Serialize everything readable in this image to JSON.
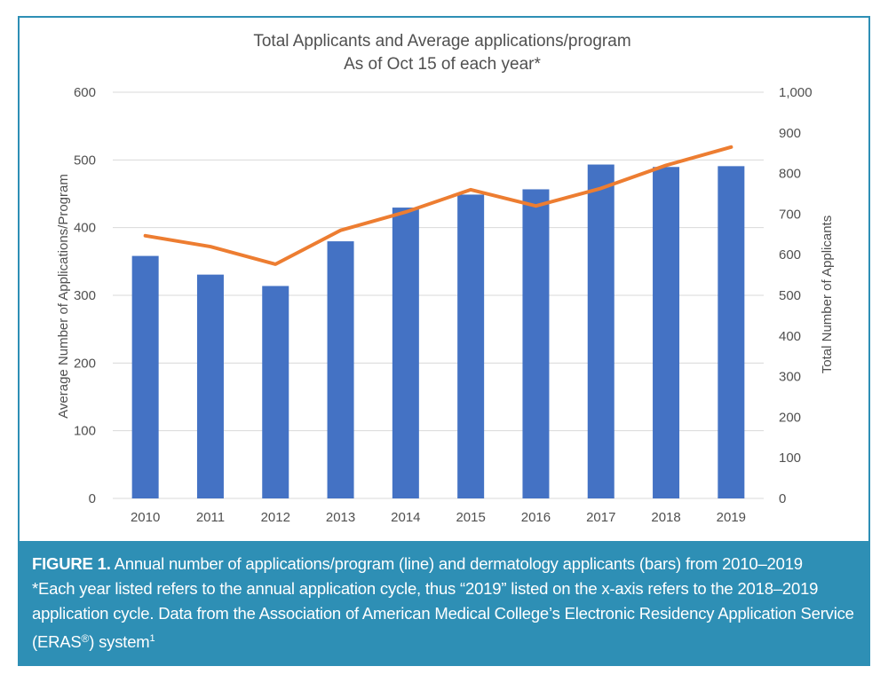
{
  "chart_data": {
    "type": "bar",
    "title": "Total Applicants and Average applications/program",
    "subtitle": "As of Oct 15 of each year*",
    "categories": [
      "2010",
      "2011",
      "2012",
      "2013",
      "2014",
      "2015",
      "2016",
      "2017",
      "2018",
      "2019"
    ],
    "series": [
      {
        "kind": "bar",
        "axis": "right",
        "color": "#4472c4",
        "values": [
          597,
          551,
          523,
          633,
          716,
          748,
          761,
          822,
          816,
          818
        ]
      },
      {
        "kind": "line",
        "axis": "left",
        "color": "#ed7d31",
        "values": [
          388,
          372,
          346,
          396,
          423,
          456,
          432,
          458,
          492,
          519
        ]
      }
    ],
    "ylabel": "Average Number of Applications/Program",
    "ylabel_right": "Total Number of Applicants",
    "ylim": [
      0,
      600
    ],
    "ylim_right": [
      0,
      1000
    ],
    "yticks": [
      "0",
      "100",
      "200",
      "300",
      "400",
      "500",
      "600"
    ],
    "yticks_right": [
      "0",
      "100",
      "200",
      "300",
      "400",
      "500",
      "600",
      "700",
      "800",
      "900",
      "1,000"
    ],
    "grid": true,
    "legend": "none"
  },
  "caption": {
    "label": "FIGURE 1.",
    "line1": "Annual number of applications/program (line) and dermatology applicants (bars) from 2010–2019",
    "line2": "*Each year listed refers to the annual application cycle, thus “2019” listed on the x-axis refers to the 2018–2019",
    "line3": "application cycle. Data from the Association of American Medical College’s Electronic Residency Application Service",
    "line4_pre": "(ERAS",
    "line4_reg": "®",
    "line4_mid": ") system",
    "line4_sup": "1"
  }
}
